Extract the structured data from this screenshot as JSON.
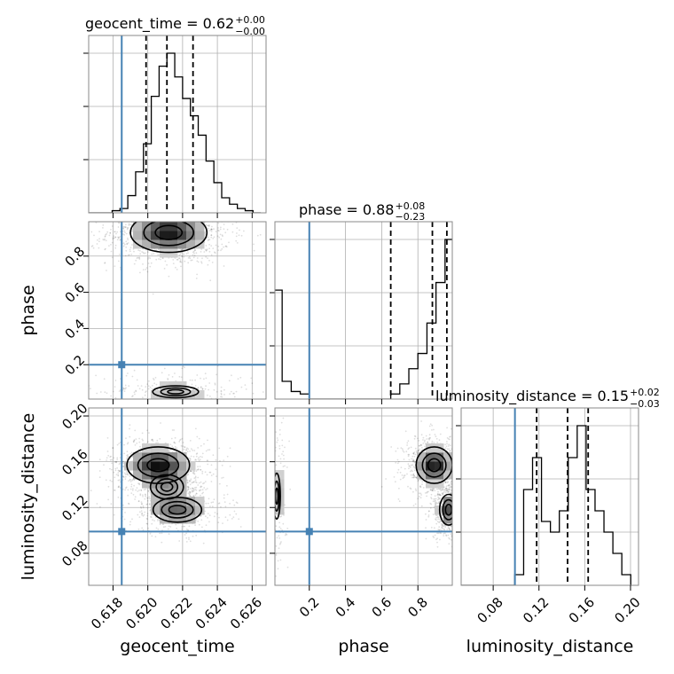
{
  "chart_data": {
    "type": "corner",
    "parameters": [
      "geocent_time",
      "phase",
      "luminosity_distance"
    ],
    "truth_color": "#4682b4",
    "truths": {
      "geocent_time": 0.6185,
      "phase": 0.2,
      "luminosity_distance": 0.099
    },
    "ranges": {
      "geocent_time": [
        0.6166,
        0.6268
      ],
      "phase": [
        0.01,
        0.99
      ],
      "luminosity_distance": [
        0.052,
        0.207
      ]
    },
    "titles": {
      "geocent_time": {
        "text": "geocent_time = 0.62",
        "upper": "+0.00",
        "lower": "−0.00"
      },
      "phase": {
        "text": "phase = 0.88",
        "upper": "+0.08",
        "lower": "−0.23"
      },
      "luminosity_distance": {
        "text": "luminosity_distance = 0.15",
        "upper": "+0.02",
        "lower": "−0.03"
      }
    },
    "ticks": {
      "geocent_time": {
        "values": [
          0.618,
          0.62,
          0.622,
          0.624,
          0.626
        ],
        "labels": [
          "0.618",
          "0.620",
          "0.622",
          "0.624",
          "0.626"
        ]
      },
      "phase": {
        "values": [
          0.2,
          0.4,
          0.6,
          0.8
        ],
        "labels": [
          "0.2",
          "0.4",
          "0.6",
          "0.8"
        ]
      },
      "luminosity_distance": {
        "values": [
          0.08,
          0.12,
          0.16,
          0.2
        ],
        "labels": [
          "0.08",
          "0.12",
          "0.16",
          "0.20"
        ]
      }
    },
    "quantiles": {
      "geocent_time": [
        0.6199,
        0.6211,
        0.6226
      ],
      "phase": [
        0.65,
        0.88,
        0.96
      ],
      "luminosity_distance": [
        0.118,
        0.145,
        0.163
      ]
    },
    "histograms": {
      "geocent_time": {
        "edges": [
          0.6166,
          0.61705,
          0.6175,
          0.61795,
          0.6184,
          0.61885,
          0.6193,
          0.61975,
          0.6202,
          0.62065,
          0.6211,
          0.62155,
          0.622,
          0.62245,
          0.6229,
          0.62335,
          0.6238,
          0.62425,
          0.6247,
          0.62515,
          0.6256,
          0.62605,
          0.6265
        ],
        "counts": [
          0,
          0,
          0,
          1,
          2,
          8,
          19,
          32,
          54,
          68,
          74,
          63,
          53,
          45,
          36,
          24,
          14,
          7,
          4,
          2,
          1,
          0
        ]
      },
      "phase": {
        "edges": [
          0.0,
          0.05,
          0.1,
          0.15,
          0.2,
          0.25,
          0.3,
          0.35,
          0.4,
          0.45,
          0.5,
          0.55,
          0.6,
          0.65,
          0.7,
          0.75,
          0.8,
          0.85,
          0.9,
          0.95,
          1.0
        ],
        "counts": [
          43,
          7,
          3,
          2,
          0,
          0,
          0,
          0,
          0,
          0,
          0,
          0,
          0,
          2,
          6,
          12,
          18,
          30,
          46,
          63
        ]
      },
      "luminosity_distance": {
        "edges": [
          0.052,
          0.0598,
          0.0676,
          0.0754,
          0.0832,
          0.091,
          0.0988,
          0.1066,
          0.1144,
          0.1222,
          0.13,
          0.1378,
          0.1456,
          0.1534,
          0.1612,
          0.169,
          0.1768,
          0.1846,
          0.1924,
          0.2002
        ],
        "counts": [
          0,
          0,
          0,
          0,
          0,
          0,
          1,
          9,
          12,
          6,
          5,
          7,
          12,
          15,
          9,
          7,
          5,
          3,
          1
        ]
      }
    },
    "densities_2d": [
      {
        "x": "geocent_time",
        "y": "phase",
        "modes": [
          {
            "x": 0.6212,
            "y": 0.93,
            "sx": 0.0011,
            "sy": 0.055,
            "w": 1.0
          },
          {
            "x": 0.6216,
            "y": 0.05,
            "sx": 0.0014,
            "sy": 0.035,
            "w": 0.22
          }
        ]
      },
      {
        "x": "geocent_time",
        "y": "luminosity_distance",
        "modes": [
          {
            "x": 0.6206,
            "y": 0.157,
            "sx": 0.0009,
            "sy": 0.008,
            "w": 1.0
          },
          {
            "x": 0.6217,
            "y": 0.118,
            "sx": 0.0009,
            "sy": 0.007,
            "w": 0.6
          },
          {
            "x": 0.6211,
            "y": 0.138,
            "sx": 0.0008,
            "sy": 0.009,
            "w": 0.35
          }
        ]
      },
      {
        "x": "phase",
        "y": "luminosity_distance",
        "modes": [
          {
            "x": 0.89,
            "y": 0.157,
            "sx": 0.05,
            "sy": 0.008,
            "w": 1.0
          },
          {
            "x": 0.97,
            "y": 0.118,
            "sx": 0.03,
            "sy": 0.008,
            "w": 0.7
          },
          {
            "x": 0.02,
            "y": 0.13,
            "sx": 0.02,
            "sy": 0.02,
            "w": 0.25
          }
        ]
      }
    ],
    "grid": true
  }
}
